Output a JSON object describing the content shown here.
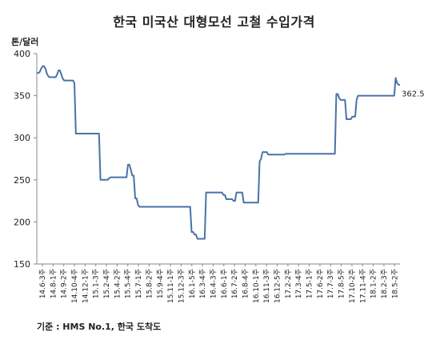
{
  "chart_data": {
    "type": "line",
    "title": "한국 미국산 대형모선 고철 수입가격",
    "ylabel": "톤/달러",
    "ylim": [
      150,
      400
    ],
    "yticks": [
      150,
      200,
      250,
      300,
      350,
      400
    ],
    "grid": false,
    "source": "기준 : HMS No.1, 한국 도착도",
    "end_label": "362.5",
    "x_ticks": [
      "14.6-3주",
      "14.8-1주",
      "14.9-2주",
      "14.10-4주",
      "14.12-1주",
      "15.1-3주",
      "15.2-4주",
      "15.4-2주",
      "15.5-4주",
      "15.7-1주",
      "15.8-2주",
      "15.9-4주",
      "15.11-1주",
      "15.12-3주",
      "16.1-5주",
      "16.3-4주",
      "16.4-3주",
      "16.6-1주",
      "16.7-2주",
      "16.8-4주",
      "16.10-1주",
      "16.11-3주",
      "16.12-5주",
      "17.2-2주",
      "17.3-4주",
      "17.5-1주",
      "17.6-2주",
      "17.7-3주",
      "17.8-5주",
      "17.10-2주",
      "17.11-4주",
      "18.1-2주",
      "18.2-3주",
      "18.5-2주"
    ],
    "series": [
      {
        "values": [
          377,
          377,
          378,
          382,
          385,
          385,
          382,
          376,
          373,
          372,
          372,
          372,
          372,
          372,
          375,
          380,
          380,
          375,
          370,
          368,
          368,
          368,
          368,
          368,
          368,
          368,
          365,
          305,
          305,
          305,
          305,
          305,
          305,
          305,
          305,
          305,
          305,
          305,
          305,
          305,
          305,
          305,
          305,
          305,
          250,
          250,
          250,
          250,
          250,
          250,
          252,
          253,
          253,
          253,
          253,
          253,
          253,
          253,
          253,
          253,
          253,
          253,
          253,
          268,
          268,
          262,
          255,
          255,
          228,
          228,
          220,
          218,
          218,
          218,
          218,
          218,
          218,
          218,
          218,
          218,
          218,
          218,
          218,
          218,
          218,
          218,
          218,
          218,
          218,
          218,
          218,
          218,
          218,
          218,
          218,
          218,
          218,
          218,
          218,
          218,
          218,
          218,
          218,
          218,
          218,
          218,
          218,
          188,
          188,
          185,
          185,
          180,
          180,
          180,
          180,
          180,
          180,
          235,
          235,
          235,
          235,
          235,
          235,
          235,
          235,
          235,
          235,
          235,
          235,
          232,
          232,
          227,
          227,
          227,
          227,
          227,
          225,
          225,
          235,
          235,
          235,
          235,
          235,
          223,
          223,
          223,
          223,
          223,
          223,
          223,
          223,
          223,
          223,
          223,
          272,
          275,
          283,
          283,
          283,
          283,
          280,
          280,
          280,
          280,
          280,
          280,
          280,
          280,
          280,
          280,
          280,
          280,
          281,
          281,
          281,
          281,
          281,
          281,
          281,
          281,
          281,
          281,
          281,
          281,
          281,
          281,
          281,
          281,
          281,
          281,
          281,
          281,
          281,
          281,
          281,
          281,
          281,
          281,
          281,
          281,
          281,
          281,
          281,
          281,
          281,
          281,
          281,
          352,
          352,
          347,
          345,
          345,
          345,
          345,
          322,
          322,
          322,
          322,
          325,
          325,
          325,
          345,
          350,
          350,
          350,
          350,
          350,
          350,
          350,
          350,
          350,
          350,
          350,
          350,
          350,
          350,
          350,
          350,
          350,
          350,
          350,
          350,
          350,
          350,
          350,
          350,
          350,
          350,
          371,
          365,
          363,
          362.5
        ]
      }
    ]
  }
}
